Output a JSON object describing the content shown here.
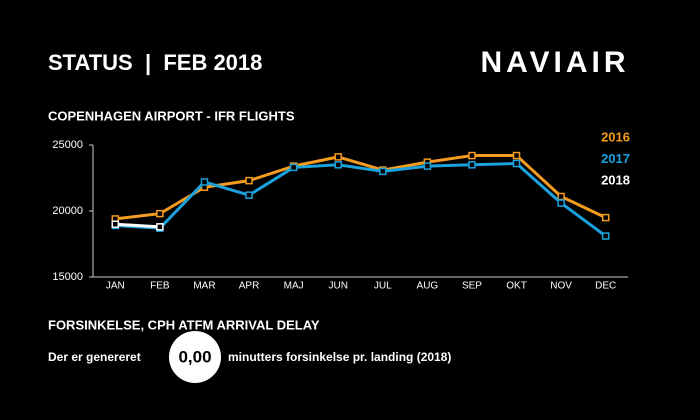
{
  "header": {
    "title": "STATUS  |  FEB 2018",
    "logo": "NAVIAIR"
  },
  "chart_data": {
    "type": "line",
    "title": "COPENHAGEN AIRPORT - IFR FLIGHTS",
    "categories": [
      "JAN",
      "FEB",
      "MAR",
      "APR",
      "MAJ",
      "JUN",
      "JUL",
      "AUG",
      "SEP",
      "OKT",
      "NOV",
      "DEC"
    ],
    "series": [
      {
        "name": "2016",
        "color": "#f39c1f",
        "values": [
          19400,
          19800,
          21800,
          22300,
          23400,
          24100,
          23100,
          23700,
          24200,
          24200,
          21100,
          19500
        ]
      },
      {
        "name": "2017",
        "color": "#1ba1dc",
        "values": [
          18900,
          18700,
          22200,
          21200,
          23300,
          23500,
          23000,
          23400,
          23500,
          23600,
          20600,
          18100
        ]
      },
      {
        "name": "2018",
        "color": "#ffffff",
        "values": [
          19000,
          18800,
          null,
          null,
          null,
          null,
          null,
          null,
          null,
          null,
          null,
          null
        ]
      }
    ],
    "ylim": [
      15000,
      25000
    ],
    "yticks": [
      15000,
      20000,
      25000
    ],
    "grid": false,
    "legend": "top-right"
  },
  "footer": {
    "heading": "FORSINKELSE, CPH ATFM ARRIVAL DELAY",
    "lead": "Der er genereret",
    "value": "0,00",
    "tail": "minutters forsinkelse pr. landing (2018)"
  }
}
